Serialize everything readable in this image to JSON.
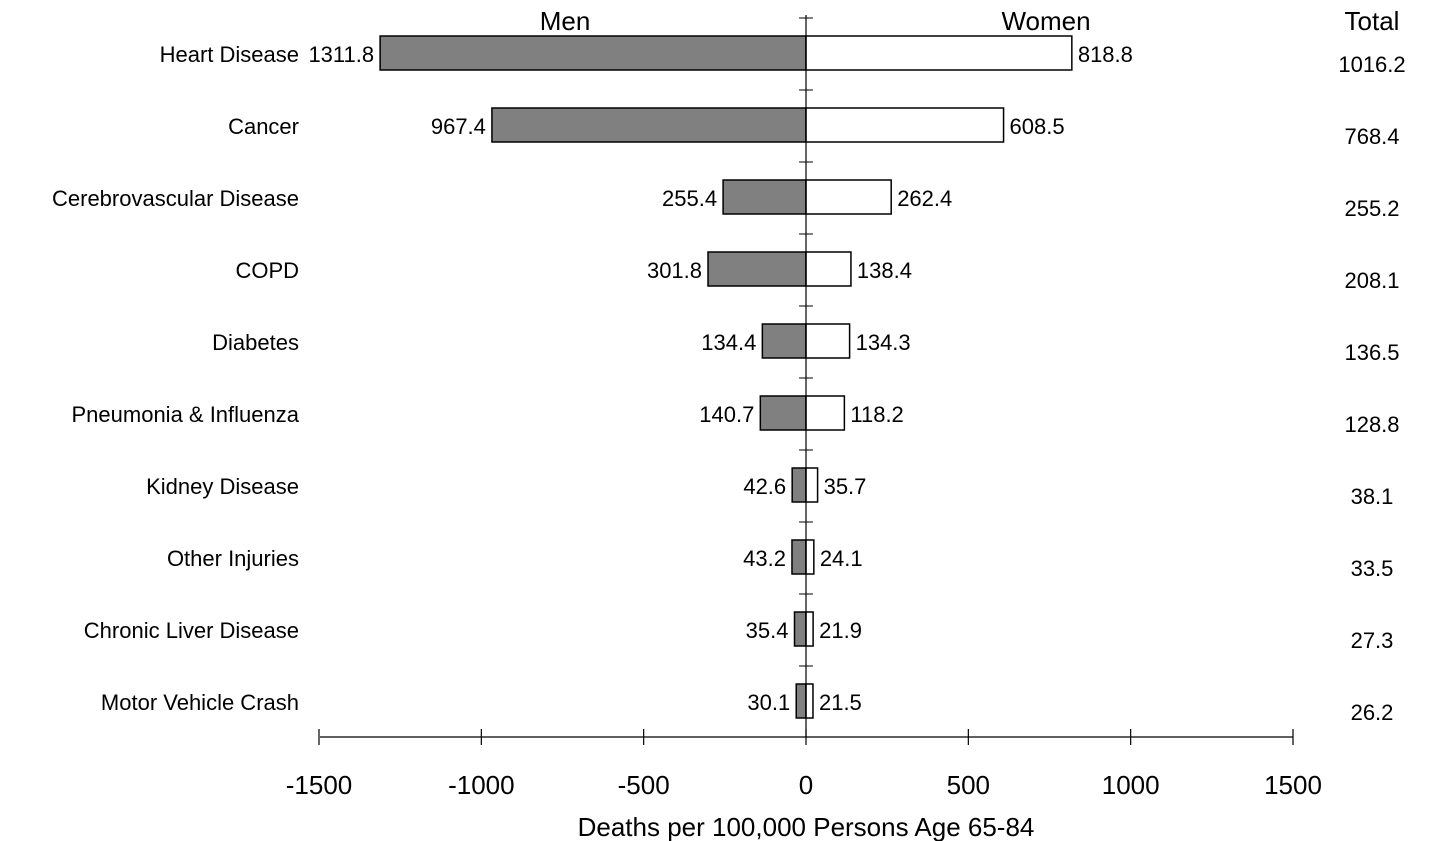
{
  "chart_data": {
    "type": "bar",
    "orientation": "horizontal-diverging",
    "headers": {
      "men": "Men",
      "women": "Women",
      "total": "Total"
    },
    "xlabel": "Deaths per 100,000 Persons Age 65-84",
    "xlim": [
      -1500,
      1500
    ],
    "xticks": [
      -1500,
      -1000,
      -500,
      0,
      500,
      1000,
      1500
    ],
    "categories": [
      "Heart Disease",
      "Cancer",
      "Cerebrovascular Disease",
      "COPD",
      "Diabetes",
      "Pneumonia & Influenza",
      "Kidney Disease",
      "Other Injuries",
      "Chronic Liver Disease",
      "Motor Vehicle Crash"
    ],
    "series": [
      {
        "name": "Men",
        "values": [
          1311.8,
          967.4,
          255.4,
          301.8,
          134.4,
          140.7,
          42.6,
          43.2,
          35.4,
          30.1
        ],
        "color": "#808080",
        "direction": "left"
      },
      {
        "name": "Women",
        "values": [
          818.8,
          608.5,
          262.4,
          138.4,
          134.3,
          118.2,
          35.7,
          24.1,
          21.9,
          21.5
        ],
        "color": "#ffffff",
        "direction": "right"
      }
    ],
    "totals": [
      1016.2,
      768.4,
      255.2,
      208.1,
      136.5,
      128.8,
      38.1,
      33.5,
      27.3,
      26.2
    ],
    "grid": false,
    "legend": "none"
  }
}
